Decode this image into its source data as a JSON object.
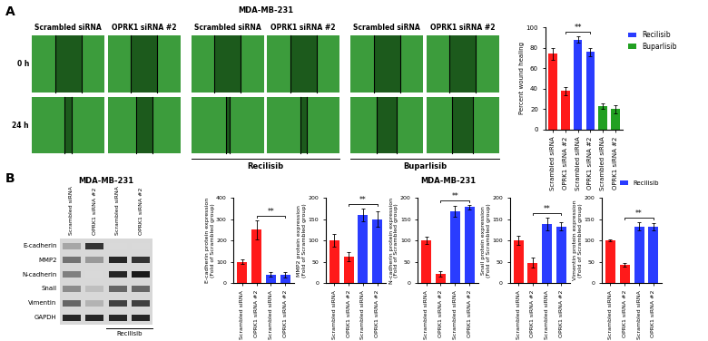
{
  "panels": [
    "A",
    "B"
  ],
  "wound_images": {
    "title": "MDA-MB-231",
    "columns": [
      "Scrambled siRNA",
      "OPRK1 siRNA #2",
      "Scrambled siRNA",
      "OPRK1 siRNA #2",
      "Scrambled siRNA",
      "OPRK1 siRNA #2"
    ],
    "rows": [
      "0 h",
      "24 h"
    ],
    "treatments": [
      {
        "label": "Recilisib",
        "columns": [
          2,
          3
        ]
      },
      {
        "label": "Buparlisib",
        "columns": [
          4,
          5
        ]
      }
    ]
  },
  "western_blot": {
    "title": "MDA-MB-231",
    "lanes": [
      "Scrambled siRNA",
      "OPRK1 siRNA #2",
      "Scrambled siRNA",
      "OPRK1 siRNA #2"
    ],
    "proteins": [
      "E-cadherin",
      "MMP2",
      "N-cadherin",
      "Snail",
      "Vimentin",
      "GAPDH"
    ],
    "treatment": {
      "label": "Recilisib",
      "lanes": [
        2,
        3
      ]
    }
  },
  "charts_title": "MDA-MB-231",
  "chart_data": [
    {
      "type": "bar",
      "ylabel": "Percent wound healing",
      "categories": [
        "Scrambled siRNA",
        "OPRK1 siRNA #2",
        "Scrambled siRNA",
        "OPRK1 siRNA #2",
        "Scrambled siRNA",
        "OPRK1 siRNA #2"
      ],
      "values": [
        74,
        38,
        88,
        76,
        23,
        20
      ],
      "errors": [
        6,
        4,
        3,
        4,
        3,
        4
      ],
      "colors": [
        "#ff1a1a",
        "#ff1a1a",
        "#2a3cff",
        "#2a3cff",
        "#22a022",
        "#22a022"
      ],
      "ylim": [
        0,
        100
      ],
      "yticks": [
        0,
        20,
        40,
        60,
        80,
        100
      ],
      "annotations": [
        {
          "text": "**",
          "from": 1,
          "to": 3
        }
      ],
      "legend": "upper left",
      "legend_entries": [
        {
          "name": "Recilisib",
          "color": "#2a3cff"
        },
        {
          "name": "Buparlisib",
          "color": "#22a022"
        }
      ]
    },
    {
      "type": "bar",
      "ylabel": "E-cadherin protein expression\n(Fold of Scrambled group)",
      "categories": [
        "Scrambled siRNA",
        "OPRK1 siRNA #2",
        "Scrambled siRNA",
        "OPRK1 siRNA #2"
      ],
      "values": [
        100,
        250,
        40,
        40
      ],
      "errors": [
        10,
        45,
        10,
        12
      ],
      "colors": [
        "#ff1a1a",
        "#ff1a1a",
        "#2a3cff",
        "#2a3cff"
      ],
      "ylim": [
        0,
        400
      ],
      "yticks": [
        0,
        100,
        200,
        300,
        400
      ],
      "annotations": [
        {
          "text": "**",
          "from": 1,
          "to": 3
        }
      ]
    },
    {
      "type": "bar",
      "ylabel": "MMP2 protein expression\n(Fold of Scrambled group)",
      "categories": [
        "Scrambled siRNA",
        "OPRK1 siRNA #2",
        "Scrambled siRNA",
        "OPRK1 siRNA #2"
      ],
      "values": [
        100,
        62,
        160,
        150
      ],
      "errors": [
        15,
        10,
        15,
        18
      ],
      "colors": [
        "#ff1a1a",
        "#ff1a1a",
        "#2a3cff",
        "#2a3cff"
      ],
      "ylim": [
        0,
        200
      ],
      "yticks": [
        0,
        50,
        100,
        150,
        200
      ],
      "annotations": [
        {
          "text": "**",
          "from": 1,
          "to": 3
        }
      ]
    },
    {
      "type": "bar",
      "ylabel": "N-cadherin protein expression\n(Fold of Scrambled group)",
      "categories": [
        "Scrambled siRNA",
        "OPRK1 siRNA #2",
        "Scrambled siRNA",
        "OPRK1 siRNA #2"
      ],
      "values": [
        100,
        22,
        168,
        178
      ],
      "errors": [
        8,
        6,
        12,
        5
      ],
      "colors": [
        "#ff1a1a",
        "#ff1a1a",
        "#2a3cff",
        "#2a3cff"
      ],
      "ylim": [
        0,
        200
      ],
      "yticks": [
        0,
        50,
        100,
        150,
        200
      ],
      "annotations": [
        {
          "text": "**",
          "from": 1,
          "to": 3
        }
      ]
    },
    {
      "type": "bar",
      "ylabel": "Snail protein expression\n(Fold of Scrambled group)",
      "categories": [
        "Scrambled siRNA",
        "OPRK1 siRNA #2",
        "Scrambled siRNA",
        "OPRK1 siRNA #2"
      ],
      "values": [
        100,
        48,
        138,
        133
      ],
      "errors": [
        10,
        12,
        15,
        10
      ],
      "colors": [
        "#ff1a1a",
        "#ff1a1a",
        "#2a3cff",
        "#2a3cff"
      ],
      "ylim": [
        0,
        200
      ],
      "yticks": [
        0,
        50,
        100,
        150,
        200
      ],
      "annotations": [
        {
          "text": "**",
          "from": 1,
          "to": 3
        }
      ]
    },
    {
      "type": "bar",
      "ylabel": "Vimentin protein expression\n(Fold of Scrambled group)",
      "categories": [
        "Scrambled siRNA",
        "OPRK1 siRNA #2",
        "Scrambled siRNA",
        "OPRK1 siRNA #2"
      ],
      "values": [
        100,
        42,
        133,
        132
      ],
      "errors": [
        3,
        4,
        10,
        8
      ],
      "colors": [
        "#ff1a1a",
        "#ff1a1a",
        "#2a3cff",
        "#2a3cff"
      ],
      "ylim": [
        0,
        200
      ],
      "yticks": [
        0,
        50,
        100,
        150,
        200
      ],
      "annotations": [
        {
          "text": "**",
          "from": 1,
          "to": 3
        }
      ],
      "legend": "lower right",
      "legend_entries": [
        {
          "name": "Recilisib",
          "color": "#2a3cff"
        }
      ]
    }
  ]
}
